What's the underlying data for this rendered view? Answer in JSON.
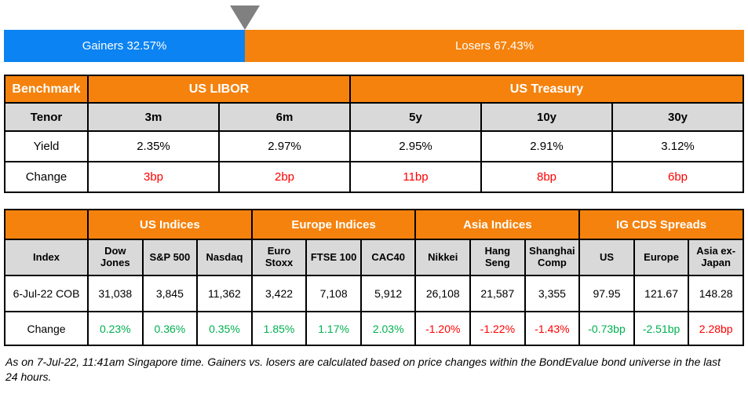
{
  "colors": {
    "header_orange": "#f5820d",
    "gainers_blue": "#0b83f2",
    "header_gray": "#d9d9d9",
    "pointer_gray": "#808080",
    "negative_red": "#ff0000",
    "positive_green": "#00b050",
    "border_black": "#000000"
  },
  "bar": {
    "gainers_label": "Gainers 32.57%",
    "losers_label": "Losers 67.43%",
    "gainers_pct": 32.57,
    "losers_pct": 67.43
  },
  "benchmark_table": {
    "corner_label": "Benchmark",
    "groups": [
      {
        "label": "US LIBOR",
        "span": 2
      },
      {
        "label": "US Treasury",
        "span": 3
      }
    ],
    "row_labels": {
      "tenor": "Tenor",
      "yield": "Yield",
      "change": "Change"
    },
    "tenors": [
      "3m",
      "6m",
      "5y",
      "10y",
      "30y"
    ],
    "yields": [
      "2.35%",
      "2.97%",
      "2.95%",
      "2.91%",
      "3.12%"
    ],
    "changes": [
      "3bp",
      "2bp",
      "11bp",
      "8bp",
      "6bp"
    ]
  },
  "indices_table": {
    "corner_label": "",
    "groups": [
      {
        "label": "US Indices",
        "span": 3
      },
      {
        "label": "Europe Indices",
        "span": 3
      },
      {
        "label": "Asia Indices",
        "span": 3
      },
      {
        "label": "IG CDS Spreads",
        "span": 3
      }
    ],
    "row_labels": {
      "index": "Index",
      "value": "6-Jul-22 COB",
      "change": "Change"
    },
    "columns": [
      "Dow Jones",
      "S&P 500",
      "Nasdaq",
      "Euro Stoxx",
      "FTSE 100",
      "CAC40",
      "Nikkei",
      "Hang Seng",
      "Shanghai Comp",
      "US",
      "Europe",
      "Asia ex-Japan"
    ],
    "values": [
      "31,038",
      "3,845",
      "11,362",
      "3,422",
      "7,108",
      "5,912",
      "26,108",
      "21,587",
      "3,355",
      "97.95",
      "121.67",
      "148.28"
    ],
    "changes": [
      {
        "v": "0.23%",
        "c": "#00b050"
      },
      {
        "v": "0.36%",
        "c": "#00b050"
      },
      {
        "v": "0.35%",
        "c": "#00b050"
      },
      {
        "v": "1.85%",
        "c": "#00b050"
      },
      {
        "v": "1.17%",
        "c": "#00b050"
      },
      {
        "v": "2.03%",
        "c": "#00b050"
      },
      {
        "v": "-1.20%",
        "c": "#ff0000"
      },
      {
        "v": "-1.22%",
        "c": "#ff0000"
      },
      {
        "v": "-1.43%",
        "c": "#ff0000"
      },
      {
        "v": "-0.73bp",
        "c": "#00b050"
      },
      {
        "v": "-2.51bp",
        "c": "#00b050"
      },
      {
        "v": "2.28bp",
        "c": "#ff0000"
      }
    ]
  },
  "footer": {
    "text": "As on 7-Jul-22, 11:41am Singapore time. Gainers vs. losers are calculated based on price changes within the BondEvalue bond universe in the last 24 hours."
  },
  "chart_data": [
    {
      "type": "bar",
      "title": "Gainers vs Losers",
      "orientation": "horizontal-stacked",
      "categories": [
        "Gainers",
        "Losers"
      ],
      "values": [
        32.57,
        67.43
      ],
      "unit": "%",
      "colors": [
        "#0b83f2",
        "#f5820d"
      ],
      "annotations": [
        "Gainers 32.57%",
        "Losers 67.43%"
      ]
    },
    {
      "type": "table",
      "title": "Benchmark",
      "column_groups": [
        "US LIBOR",
        "US LIBOR",
        "US Treasury",
        "US Treasury",
        "US Treasury"
      ],
      "columns": [
        "Tenor",
        "3m",
        "6m",
        "5y",
        "10y",
        "30y"
      ],
      "rows": [
        [
          "Yield",
          "2.35%",
          "2.97%",
          "2.95%",
          "2.91%",
          "3.12%"
        ],
        [
          "Change",
          "3bp",
          "2bp",
          "11bp",
          "8bp",
          "6bp"
        ]
      ]
    },
    {
      "type": "table",
      "title": "Indices and IG CDS Spreads",
      "column_groups": [
        "US Indices",
        "US Indices",
        "US Indices",
        "Europe Indices",
        "Europe Indices",
        "Europe Indices",
        "Asia Indices",
        "Asia Indices",
        "Asia Indices",
        "IG CDS Spreads",
        "IG CDS Spreads",
        "IG CDS Spreads"
      ],
      "columns": [
        "Index",
        "Dow Jones",
        "S&P 500",
        "Nasdaq",
        "Euro Stoxx",
        "FTSE 100",
        "CAC40",
        "Nikkei",
        "Hang Seng",
        "Shanghai Comp",
        "US",
        "Europe",
        "Asia ex-Japan"
      ],
      "rows": [
        [
          "6-Jul-22 COB",
          "31,038",
          "3,845",
          "11,362",
          "3,422",
          "7,108",
          "5,912",
          "26,108",
          "21,587",
          "3,355",
          "97.95",
          "121.67",
          "148.28"
        ],
        [
          "Change",
          "0.23%",
          "0.36%",
          "0.35%",
          "1.85%",
          "1.17%",
          "2.03%",
          "-1.20%",
          "-1.22%",
          "-1.43%",
          "-0.73bp",
          "-2.51bp",
          "2.28bp"
        ]
      ]
    }
  ]
}
